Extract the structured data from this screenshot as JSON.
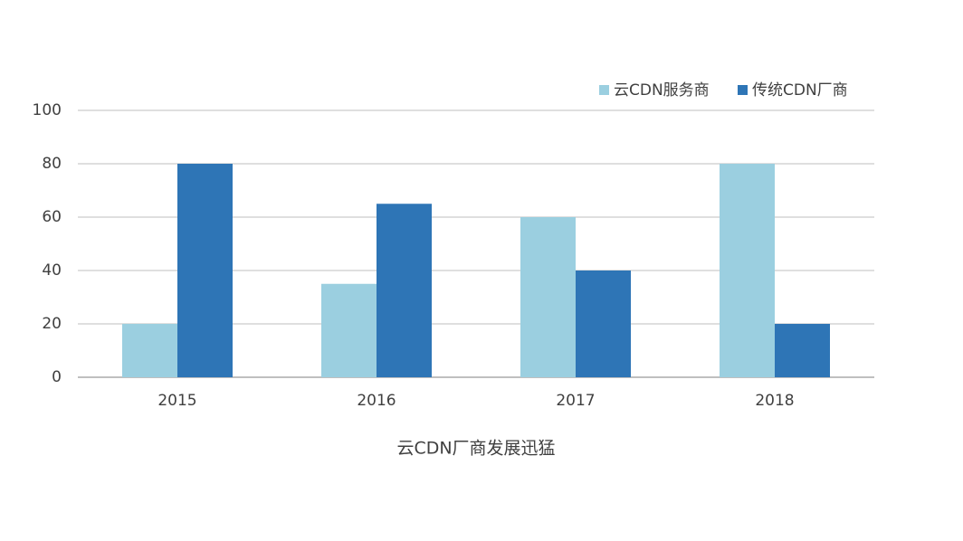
{
  "chart_data": {
    "type": "bar",
    "title": "云CDN厂商发展迅猛",
    "categories": [
      "2015",
      "2016",
      "2017",
      "2018"
    ],
    "series": [
      {
        "name": "云CDN服务商",
        "color": "#9bcfe0",
        "values": [
          20,
          35,
          60,
          80
        ]
      },
      {
        "name": "传统CDN厂商",
        "color": "#2e75b6",
        "values": [
          80,
          65,
          40,
          20
        ]
      }
    ],
    "ylim": [
      0,
      100
    ],
    "yticks": [
      0,
      20,
      40,
      60,
      80,
      100
    ],
    "grid": true,
    "legend": "top-right"
  }
}
